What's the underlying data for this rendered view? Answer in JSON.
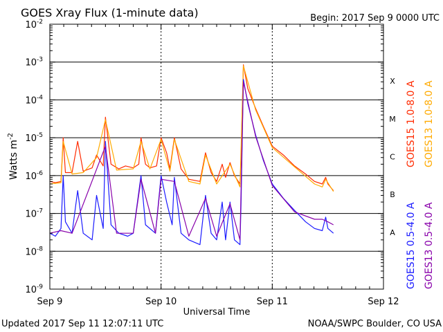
{
  "chart_data": {
    "type": "line",
    "title": "GOES Xray Flux (1-minute data)",
    "begin_label": "Begin:  2017 Sep 9 0000 UTC",
    "xlabel": "Universal Time",
    "ylabel": "Watts m",
    "ylabel_sup": "-2",
    "y_scale": "log",
    "ylim": [
      1e-09,
      0.01
    ],
    "xlim_days": [
      0,
      3
    ],
    "x_ticks": [
      "Sep 9",
      "Sep 10",
      "Sep 11",
      "Sep 12"
    ],
    "y_ticks": [
      {
        "base": "10",
        "exp": "-9"
      },
      {
        "base": "10",
        "exp": "-8"
      },
      {
        "base": "10",
        "exp": "-7"
      },
      {
        "base": "10",
        "exp": "-6"
      },
      {
        "base": "10",
        "exp": "-5"
      },
      {
        "base": "10",
        "exp": "-4"
      },
      {
        "base": "10",
        "exp": "-3"
      },
      {
        "base": "10",
        "exp": "-2"
      }
    ],
    "flare_classes": [
      "A",
      "B",
      "C",
      "M",
      "X"
    ],
    "grid": "horizontal lines at each decade from 1e-8 to 1e-3",
    "legend_placement": "right",
    "colors": {
      "goes15_long": "#ff2a00",
      "goes13_long": "#ffaa00",
      "goes15_short": "#1a1aff",
      "goes13_short": "#8800aa"
    },
    "series": [
      {
        "name": "GOES15 1.0-8.0 A",
        "color": "#ff2a00",
        "points": [
          [
            0.0,
            7e-07
          ],
          [
            0.05,
            6.5e-07
          ],
          [
            0.1,
            7e-07
          ],
          [
            0.12,
            1e-05
          ],
          [
            0.14,
            1.2e-06
          ],
          [
            0.2,
            1.2e-06
          ],
          [
            0.25,
            8e-06
          ],
          [
            0.3,
            1.3e-06
          ],
          [
            0.38,
            1.6e-06
          ],
          [
            0.42,
            3.5e-06
          ],
          [
            0.45,
            2.5e-06
          ],
          [
            0.48,
            1.8e-06
          ],
          [
            0.5,
            3.5e-05
          ],
          [
            0.55,
            2e-06
          ],
          [
            0.62,
            1.5e-06
          ],
          [
            0.68,
            1.8e-06
          ],
          [
            0.75,
            1.6e-06
          ],
          [
            0.8,
            2e-06
          ],
          [
            0.82,
            1e-05
          ],
          [
            0.86,
            2e-06
          ],
          [
            0.9,
            1.6e-06
          ],
          [
            0.96,
            1.8e-06
          ],
          [
            1.0,
            1e-05
          ],
          [
            1.05,
            4e-06
          ],
          [
            1.08,
            1.5e-06
          ],
          [
            1.12,
            1e-05
          ],
          [
            1.18,
            1.5e-06
          ],
          [
            1.25,
            8e-07
          ],
          [
            1.35,
            7e-07
          ],
          [
            1.4,
            4e-06
          ],
          [
            1.45,
            1.2e-06
          ],
          [
            1.5,
            7e-07
          ],
          [
            1.55,
            2e-06
          ],
          [
            1.58,
            9e-07
          ],
          [
            1.62,
            2.2e-06
          ],
          [
            1.66,
            1e-06
          ],
          [
            1.71,
            6e-07
          ],
          [
            1.72,
            3e-06
          ],
          [
            1.74,
            0.00085
          ],
          [
            1.78,
            0.0002
          ],
          [
            1.85,
            6e-05
          ],
          [
            1.92,
            2e-05
          ],
          [
            2.0,
            6e-06
          ],
          [
            2.1,
            3.5e-06
          ],
          [
            2.2,
            1.8e-06
          ],
          [
            2.3,
            1.1e-06
          ],
          [
            2.38,
            7e-07
          ],
          [
            2.45,
            6e-07
          ],
          [
            2.48,
            9e-07
          ],
          [
            2.5,
            6e-07
          ],
          [
            2.55,
            4e-07
          ]
        ]
      },
      {
        "name": "GOES13 1.0-8.0 A",
        "color": "#ffaa00",
        "points": [
          [
            0.0,
            6e-07
          ],
          [
            0.1,
            6.5e-07
          ],
          [
            0.12,
            8e-06
          ],
          [
            0.2,
            1.1e-06
          ],
          [
            0.3,
            1.2e-06
          ],
          [
            0.42,
            3e-06
          ],
          [
            0.5,
            3e-05
          ],
          [
            0.6,
            1.4e-06
          ],
          [
            0.75,
            1.5e-06
          ],
          [
            0.82,
            8e-06
          ],
          [
            0.9,
            1.5e-06
          ],
          [
            1.0,
            9e-06
          ],
          [
            1.08,
            1.3e-06
          ],
          [
            1.12,
            9e-06
          ],
          [
            1.25,
            7e-07
          ],
          [
            1.35,
            6e-07
          ],
          [
            1.4,
            3.5e-06
          ],
          [
            1.5,
            6e-07
          ],
          [
            1.62,
            2e-06
          ],
          [
            1.71,
            5e-07
          ],
          [
            1.74,
            0.0008
          ],
          [
            1.85,
            5.5e-05
          ],
          [
            2.0,
            5.5e-06
          ],
          [
            2.2,
            1.7e-06
          ],
          [
            2.38,
            6e-07
          ],
          [
            2.45,
            5e-07
          ],
          [
            2.48,
            8e-07
          ],
          [
            2.55,
            3.8e-07
          ]
        ]
      },
      {
        "name": "GOES15 0.5-4.0 A",
        "color": "#1a1aff",
        "points": [
          [
            0.0,
            3e-08
          ],
          [
            0.05,
            2.5e-08
          ],
          [
            0.1,
            4e-08
          ],
          [
            0.12,
            1e-06
          ],
          [
            0.14,
            6e-08
          ],
          [
            0.2,
            3e-08
          ],
          [
            0.25,
            4e-07
          ],
          [
            0.3,
            3e-08
          ],
          [
            0.38,
            2e-08
          ],
          [
            0.42,
            3e-07
          ],
          [
            0.48,
            4e-08
          ],
          [
            0.5,
            8e-06
          ],
          [
            0.55,
            5e-08
          ],
          [
            0.62,
            3e-08
          ],
          [
            0.7,
            2.5e-08
          ],
          [
            0.75,
            3e-08
          ],
          [
            0.82,
            1e-06
          ],
          [
            0.86,
            5e-08
          ],
          [
            0.95,
            3e-08
          ],
          [
            1.0,
            1e-06
          ],
          [
            1.05,
            2e-07
          ],
          [
            1.1,
            5e-08
          ],
          [
            1.12,
            9e-07
          ],
          [
            1.18,
            3e-08
          ],
          [
            1.25,
            2e-08
          ],
          [
            1.35,
            1.5e-08
          ],
          [
            1.4,
            3e-07
          ],
          [
            1.45,
            3e-08
          ],
          [
            1.5,
            2e-08
          ],
          [
            1.55,
            2e-07
          ],
          [
            1.58,
            2e-08
          ],
          [
            1.62,
            2e-07
          ],
          [
            1.66,
            2e-08
          ],
          [
            1.71,
            1.5e-08
          ],
          [
            1.72,
            2e-07
          ],
          [
            1.74,
            0.00035
          ],
          [
            1.78,
            8e-05
          ],
          [
            1.85,
            1.2e-05
          ],
          [
            1.92,
            2.5e-06
          ],
          [
            2.0,
            6e-07
          ],
          [
            2.1,
            2.5e-07
          ],
          [
            2.2,
            1.2e-07
          ],
          [
            2.3,
            6e-08
          ],
          [
            2.38,
            4e-08
          ],
          [
            2.45,
            3.5e-08
          ],
          [
            2.48,
            8e-08
          ],
          [
            2.5,
            4e-08
          ],
          [
            2.55,
            3e-08
          ]
        ]
      },
      {
        "name": "GOES13 0.5-4.0 A",
        "color": "#8800aa",
        "points": [
          [
            0.0,
            3e-08
          ],
          [
            0.1,
            3.5e-08
          ],
          [
            0.2,
            3e-08
          ],
          [
            0.5,
            6e-06
          ],
          [
            0.6,
            3e-08
          ],
          [
            0.75,
            3e-08
          ],
          [
            0.82,
            8e-07
          ],
          [
            0.95,
            3e-08
          ],
          [
            1.0,
            8e-07
          ],
          [
            1.12,
            7e-07
          ],
          [
            1.25,
            2.5e-08
          ],
          [
            1.4,
            2.5e-07
          ],
          [
            1.5,
            2.5e-08
          ],
          [
            1.62,
            1.8e-07
          ],
          [
            1.71,
            2e-08
          ],
          [
            1.74,
            0.0003
          ],
          [
            1.85,
            1.1e-05
          ],
          [
            2.0,
            5.5e-07
          ],
          [
            2.2,
            1.1e-07
          ],
          [
            2.38,
            7e-08
          ],
          [
            2.45,
            7e-08
          ],
          [
            2.5,
            6e-08
          ],
          [
            2.55,
            5e-08
          ]
        ]
      }
    ]
  },
  "footer": {
    "updated": "Updated 2017 Sep 11 12:07:11 UTC",
    "credit": "NOAA/SWPC Boulder, CO USA"
  }
}
